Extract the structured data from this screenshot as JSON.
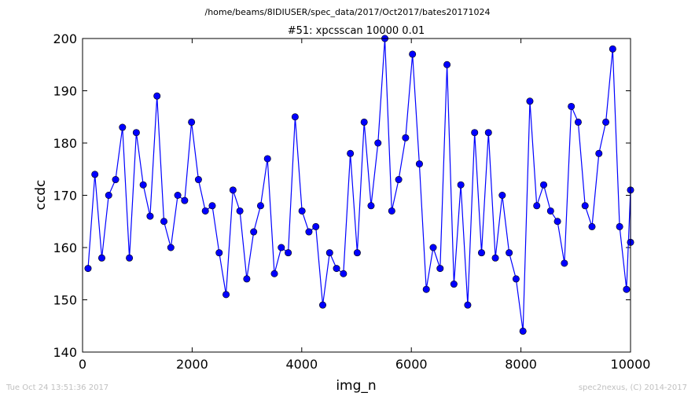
{
  "header": {
    "path": "/home/beams/8IDIUSER/spec_data/2017/Oct2017/bates20171024"
  },
  "footer": {
    "timestamp": "Tue Oct 24 13:51:36 2017",
    "credit": "spec2nexus, (C) 2014-2017"
  },
  "chart_data": {
    "type": "line",
    "title": "#51: xpcsscan 10000 0.01",
    "xlabel": "img_n",
    "ylabel": "ccdc",
    "xlim": [
      0,
      10000
    ],
    "ylim": [
      140,
      200
    ],
    "xticks": [
      0,
      2000,
      4000,
      6000,
      8000,
      10000
    ],
    "yticks": [
      140,
      150,
      160,
      170,
      180,
      190,
      200
    ],
    "grid": false,
    "marker": "circle",
    "color": "#0000ff",
    "x": [
      100,
      225,
      351,
      477,
      603,
      729,
      855,
      981,
      1107,
      1233,
      1359,
      1485,
      1611,
      1737,
      1863,
      1989,
      2115,
      2241,
      2367,
      2493,
      2619,
      2745,
      2871,
      2997,
      3123,
      3249,
      3375,
      3501,
      3627,
      3753,
      3879,
      4005,
      4131,
      4257,
      4383,
      4509,
      4635,
      4761,
      4887,
      5013,
      5139,
      5265,
      5391,
      5517,
      5643,
      5769,
      5895,
      6021,
      6147,
      6273,
      6399,
      6525,
      6651,
      6777,
      6903,
      7029,
      7155,
      7281,
      7407,
      7533,
      7659,
      7785,
      7911,
      8037,
      8163,
      8289,
      8415,
      8541,
      8667,
      8793,
      8919,
      9045,
      9171,
      9297,
      9423,
      9549,
      9675,
      9801,
      9927,
      10000,
      10000
    ],
    "y": [
      156,
      174,
      158,
      170,
      173,
      183,
      158,
      182,
      172,
      166,
      189,
      165,
      160,
      170,
      169,
      184,
      173,
      167,
      168,
      159,
      151,
      171,
      167,
      154,
      163,
      168,
      177,
      155,
      160,
      159,
      185,
      167,
      163,
      164,
      149,
      159,
      156,
      155,
      178,
      159,
      184,
      168,
      180,
      200,
      167,
      173,
      181,
      197,
      176,
      152,
      160,
      156,
      195,
      153,
      172,
      149,
      182,
      159,
      182,
      158,
      170,
      159,
      154,
      144,
      188,
      168,
      172,
      167,
      165,
      157,
      187,
      184,
      168,
      164,
      178,
      184,
      198,
      164,
      152,
      171,
      161
    ]
  }
}
